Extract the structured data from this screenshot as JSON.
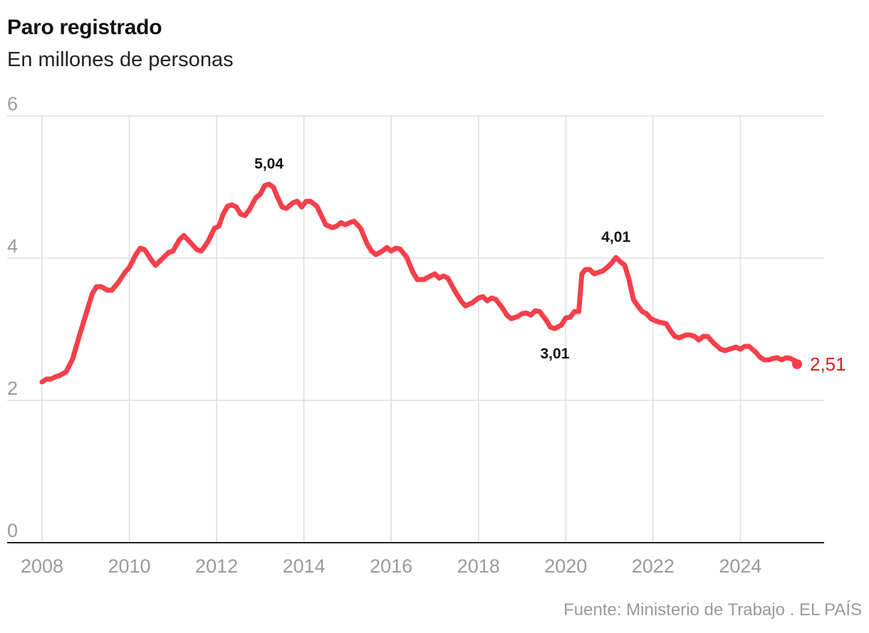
{
  "header": {
    "title": "Paro registrado",
    "subtitle": "En millones de personas"
  },
  "footer": {
    "source": "Fuente: Ministerio de Trabajo . EL PAÍS"
  },
  "colors": {
    "line": "#f4404a",
    "last_label": "#d81f1f",
    "grid": "#dddddd",
    "axis": "#222222",
    "tick_text": "#9a9a9a"
  },
  "chart_data": {
    "type": "line",
    "title": "Paro registrado",
    "subtitle": "En millones de personas",
    "xlabel": "",
    "ylabel": "",
    "xlim": [
      2008,
      2025.92
    ],
    "ylim": [
      0,
      6
    ],
    "yticks": [
      0,
      2,
      4,
      6
    ],
    "xticks": [
      2008,
      2010,
      2012,
      2014,
      2016,
      2018,
      2020,
      2022,
      2024
    ],
    "grid": true,
    "series": [
      {
        "name": "",
        "points": [
          [
            2008.0,
            2.26
          ],
          [
            2008.1,
            2.3
          ],
          [
            2008.2,
            2.3
          ],
          [
            2008.3,
            2.33
          ],
          [
            2008.4,
            2.35
          ],
          [
            2008.55,
            2.4
          ],
          [
            2008.7,
            2.58
          ],
          [
            2008.85,
            2.9
          ],
          [
            2009.0,
            3.2
          ],
          [
            2009.15,
            3.5
          ],
          [
            2009.25,
            3.6
          ],
          [
            2009.35,
            3.6
          ],
          [
            2009.5,
            3.55
          ],
          [
            2009.6,
            3.55
          ],
          [
            2009.75,
            3.66
          ],
          [
            2009.9,
            3.8
          ],
          [
            2010.0,
            3.87
          ],
          [
            2010.15,
            4.05
          ],
          [
            2010.25,
            4.14
          ],
          [
            2010.35,
            4.12
          ],
          [
            2010.5,
            3.98
          ],
          [
            2010.6,
            3.9
          ],
          [
            2010.75,
            3.99
          ],
          [
            2010.9,
            4.08
          ],
          [
            2011.0,
            4.1
          ],
          [
            2011.15,
            4.26
          ],
          [
            2011.25,
            4.32
          ],
          [
            2011.4,
            4.22
          ],
          [
            2011.55,
            4.12
          ],
          [
            2011.65,
            4.1
          ],
          [
            2011.8,
            4.23
          ],
          [
            2011.95,
            4.42
          ],
          [
            2012.05,
            4.45
          ],
          [
            2012.15,
            4.62
          ],
          [
            2012.25,
            4.73
          ],
          [
            2012.35,
            4.75
          ],
          [
            2012.45,
            4.72
          ],
          [
            2012.55,
            4.62
          ],
          [
            2012.65,
            4.6
          ],
          [
            2012.75,
            4.68
          ],
          [
            2012.9,
            4.85
          ],
          [
            2013.0,
            4.9
          ],
          [
            2013.1,
            5.02
          ],
          [
            2013.2,
            5.04
          ],
          [
            2013.3,
            5.0
          ],
          [
            2013.4,
            4.85
          ],
          [
            2013.5,
            4.72
          ],
          [
            2013.6,
            4.7
          ],
          [
            2013.75,
            4.78
          ],
          [
            2013.85,
            4.8
          ],
          [
            2013.95,
            4.72
          ],
          [
            2014.05,
            4.8
          ],
          [
            2014.15,
            4.8
          ],
          [
            2014.3,
            4.73
          ],
          [
            2014.4,
            4.6
          ],
          [
            2014.5,
            4.47
          ],
          [
            2014.65,
            4.43
          ],
          [
            2014.75,
            4.45
          ],
          [
            2014.85,
            4.5
          ],
          [
            2014.95,
            4.47
          ],
          [
            2015.05,
            4.5
          ],
          [
            2015.15,
            4.52
          ],
          [
            2015.3,
            4.42
          ],
          [
            2015.45,
            4.2
          ],
          [
            2015.55,
            4.1
          ],
          [
            2015.65,
            4.05
          ],
          [
            2015.8,
            4.1
          ],
          [
            2015.9,
            4.15
          ],
          [
            2016.0,
            4.1
          ],
          [
            2016.1,
            4.14
          ],
          [
            2016.2,
            4.13
          ],
          [
            2016.35,
            4.02
          ],
          [
            2016.5,
            3.8
          ],
          [
            2016.6,
            3.7
          ],
          [
            2016.75,
            3.7
          ],
          [
            2016.9,
            3.75
          ],
          [
            2017.0,
            3.78
          ],
          [
            2017.1,
            3.72
          ],
          [
            2017.2,
            3.75
          ],
          [
            2017.3,
            3.72
          ],
          [
            2017.45,
            3.55
          ],
          [
            2017.6,
            3.4
          ],
          [
            2017.7,
            3.33
          ],
          [
            2017.85,
            3.37
          ],
          [
            2018.0,
            3.44
          ],
          [
            2018.1,
            3.46
          ],
          [
            2018.2,
            3.4
          ],
          [
            2018.3,
            3.44
          ],
          [
            2018.4,
            3.42
          ],
          [
            2018.55,
            3.3
          ],
          [
            2018.65,
            3.2
          ],
          [
            2018.75,
            3.15
          ],
          [
            2018.9,
            3.18
          ],
          [
            2019.0,
            3.22
          ],
          [
            2019.1,
            3.23
          ],
          [
            2019.2,
            3.2
          ],
          [
            2019.3,
            3.26
          ],
          [
            2019.4,
            3.25
          ],
          [
            2019.55,
            3.13
          ],
          [
            2019.65,
            3.03
          ],
          [
            2019.75,
            3.01
          ],
          [
            2019.9,
            3.06
          ],
          [
            2020.0,
            3.16
          ],
          [
            2020.1,
            3.17
          ],
          [
            2020.2,
            3.25
          ],
          [
            2020.3,
            3.25
          ],
          [
            2020.37,
            3.78
          ],
          [
            2020.45,
            3.84
          ],
          [
            2020.55,
            3.84
          ],
          [
            2020.65,
            3.78
          ],
          [
            2020.75,
            3.8
          ],
          [
            2020.85,
            3.82
          ],
          [
            2020.95,
            3.87
          ],
          [
            2021.05,
            3.93
          ],
          [
            2021.15,
            4.01
          ],
          [
            2021.25,
            3.95
          ],
          [
            2021.35,
            3.9
          ],
          [
            2021.45,
            3.7
          ],
          [
            2021.55,
            3.42
          ],
          [
            2021.65,
            3.33
          ],
          [
            2021.75,
            3.25
          ],
          [
            2021.85,
            3.22
          ],
          [
            2021.95,
            3.15
          ],
          [
            2022.05,
            3.12
          ],
          [
            2022.15,
            3.1
          ],
          [
            2022.3,
            3.08
          ],
          [
            2022.4,
            2.98
          ],
          [
            2022.5,
            2.9
          ],
          [
            2022.6,
            2.88
          ],
          [
            2022.75,
            2.92
          ],
          [
            2022.85,
            2.92
          ],
          [
            2022.95,
            2.9
          ],
          [
            2023.05,
            2.85
          ],
          [
            2023.15,
            2.9
          ],
          [
            2023.25,
            2.9
          ],
          [
            2023.4,
            2.8
          ],
          [
            2023.55,
            2.72
          ],
          [
            2023.65,
            2.7
          ],
          [
            2023.8,
            2.73
          ],
          [
            2023.9,
            2.75
          ],
          [
            2024.0,
            2.72
          ],
          [
            2024.1,
            2.76
          ],
          [
            2024.2,
            2.76
          ],
          [
            2024.35,
            2.68
          ],
          [
            2024.45,
            2.61
          ],
          [
            2024.55,
            2.57
          ],
          [
            2024.65,
            2.57
          ],
          [
            2024.75,
            2.59
          ],
          [
            2024.85,
            2.6
          ],
          [
            2024.95,
            2.57
          ],
          [
            2025.05,
            2.6
          ],
          [
            2025.15,
            2.59
          ],
          [
            2025.25,
            2.56
          ],
          [
            2025.3,
            2.51
          ]
        ]
      }
    ],
    "annotations": [
      {
        "x": 2013.2,
        "y": 5.04,
        "label": "5,04",
        "position": "above"
      },
      {
        "x": 2019.75,
        "y": 3.01,
        "label": "3,01",
        "position": "below"
      },
      {
        "x": 2021.15,
        "y": 4.01,
        "label": "4,01",
        "position": "above"
      }
    ],
    "last_point": {
      "x": 2025.3,
      "y": 2.51,
      "label": "2,51"
    }
  }
}
